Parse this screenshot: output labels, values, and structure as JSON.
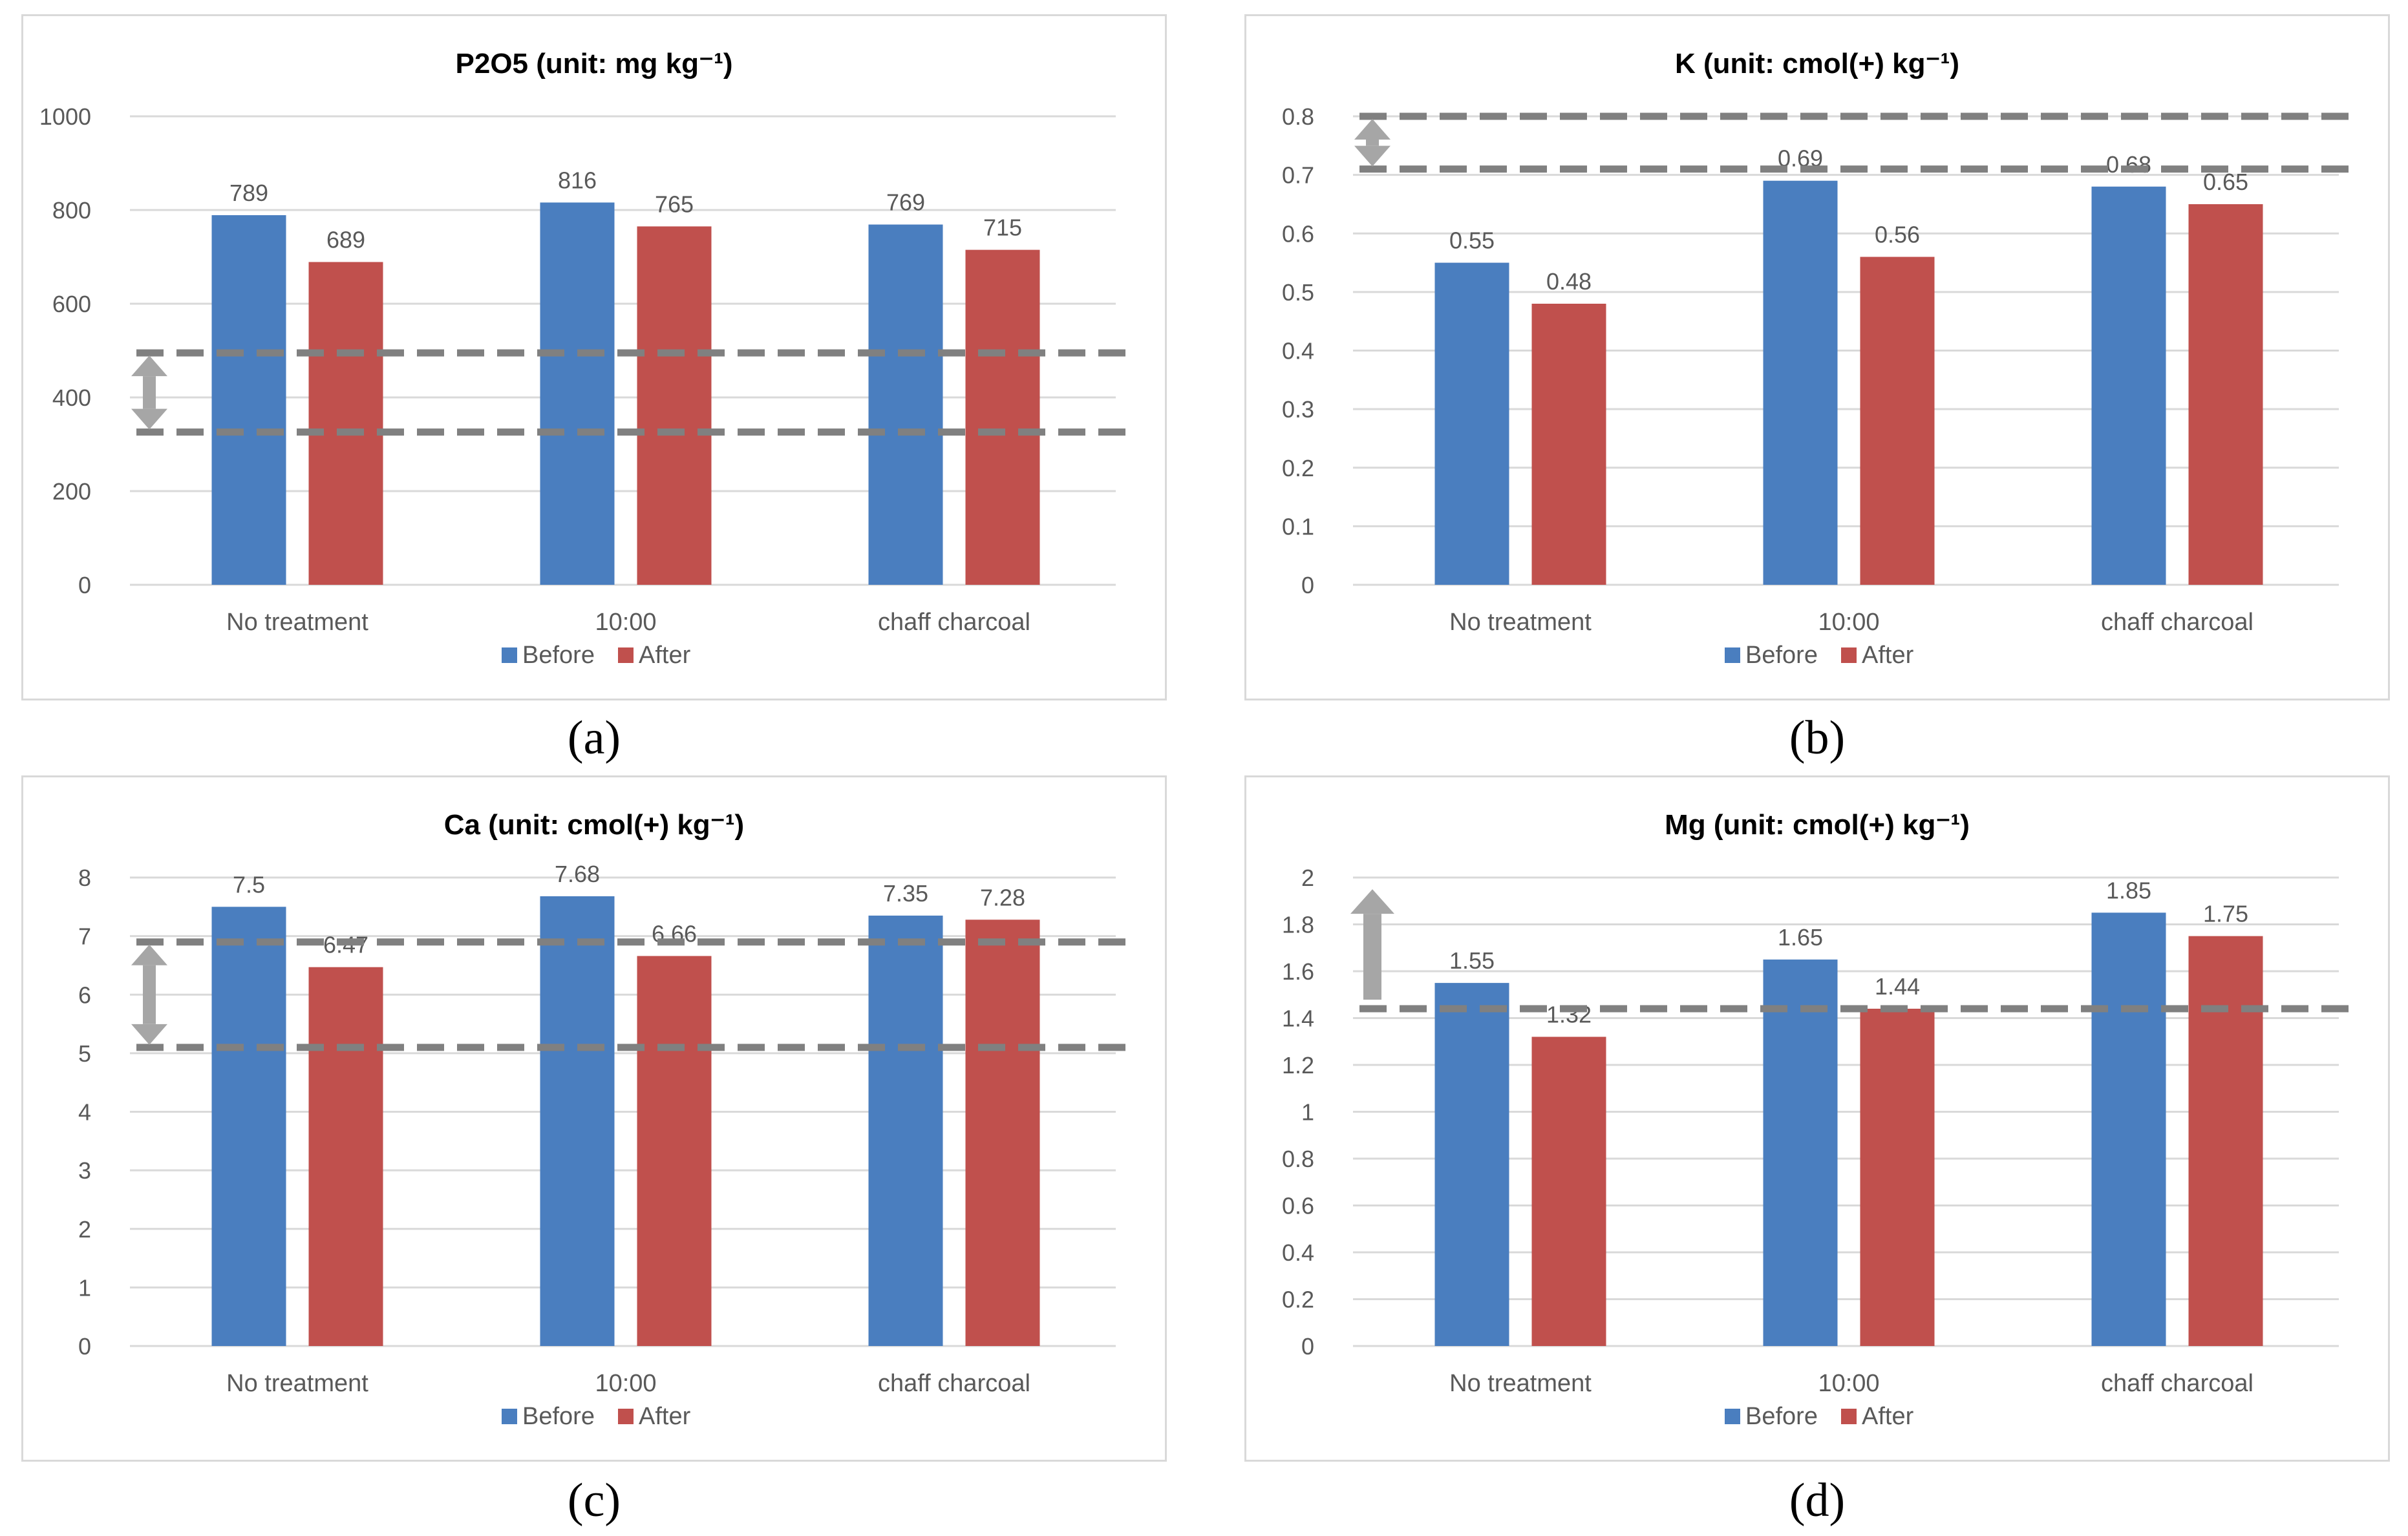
{
  "colors": {
    "before": "#4a7ebf",
    "after": "#c0504d",
    "grid": "#d9d9d9",
    "dash": "#808080",
    "arrow": "#a6a6a6",
    "text": "#595959"
  },
  "legend": {
    "before": "Before",
    "after": "After"
  },
  "captions": [
    "(a)",
    "(b)",
    "(c)",
    "(d)"
  ],
  "chart_data": [
    {
      "type": "bar",
      "title": "P2O5 (unit: mg kg⁻¹)",
      "categories": [
        "No treatment",
        "10:00",
        "chaff charcoal"
      ],
      "series": [
        {
          "name": "Before",
          "values": [
            789,
            816,
            769
          ]
        },
        {
          "name": "After",
          "values": [
            689,
            765,
            715
          ]
        }
      ],
      "data_labels": [
        [
          "789",
          "816",
          "769"
        ],
        [
          "689",
          "765",
          "715"
        ]
      ],
      "ylim": [
        0,
        1000
      ],
      "yticks": [
        0,
        200,
        400,
        600,
        800,
        1000
      ],
      "ytick_labels": [
        "0",
        "200",
        "400",
        "600",
        "800",
        "1000"
      ],
      "reference_lines": [
        495,
        326
      ],
      "reference_arrow": {
        "from": 326,
        "to": 495,
        "style": "double"
      },
      "grid": true,
      "legend_position": "bottom"
    },
    {
      "type": "bar",
      "title": "K (unit: cmol(+) kg⁻¹)",
      "categories": [
        "No treatment",
        "10:00",
        "chaff charcoal"
      ],
      "series": [
        {
          "name": "Before",
          "values": [
            0.55,
            0.69,
            0.68
          ]
        },
        {
          "name": "After",
          "values": [
            0.48,
            0.56,
            0.65
          ]
        }
      ],
      "data_labels": [
        [
          "0.55",
          "0.69",
          "0.68"
        ],
        [
          "0.48",
          "0.56",
          "0.65"
        ]
      ],
      "ylim": [
        0,
        0.8
      ],
      "yticks": [
        0,
        0.1,
        0.2,
        0.3,
        0.4,
        0.5,
        0.6,
        0.7,
        0.8
      ],
      "ytick_labels": [
        "0",
        "0.1",
        "0.2",
        "0.3",
        "0.4",
        "0.5",
        "0.6",
        "0.7",
        "0.8"
      ],
      "reference_lines": [
        0.8,
        0.71
      ],
      "reference_arrow": {
        "from": 0.71,
        "to": 0.8,
        "style": "double"
      },
      "grid": true,
      "legend_position": "bottom"
    },
    {
      "type": "bar",
      "title": "Ca (unit: cmol(+) kg⁻¹)",
      "categories": [
        "No treatment",
        "10:00",
        "chaff charcoal"
      ],
      "series": [
        {
          "name": "Before",
          "values": [
            7.5,
            7.68,
            7.35
          ]
        },
        {
          "name": "After",
          "values": [
            6.47,
            6.66,
            7.28
          ]
        }
      ],
      "data_labels": [
        [
          "7.5",
          "7.68",
          "7.35"
        ],
        [
          "6.47",
          "6.66",
          "7.28"
        ]
      ],
      "ylim": [
        0,
        8
      ],
      "yticks": [
        0,
        1,
        2,
        3,
        4,
        5,
        6,
        7,
        8
      ],
      "ytick_labels": [
        "0",
        "1",
        "2",
        "3",
        "4",
        "5",
        "6",
        "7",
        "8"
      ],
      "reference_lines": [
        6.9,
        5.1
      ],
      "reference_arrow": {
        "from": 5.1,
        "to": 6.9,
        "style": "double"
      },
      "grid": true,
      "legend_position": "bottom"
    },
    {
      "type": "bar",
      "title": "Mg (unit: cmol(+) kg⁻¹)",
      "categories": [
        "No treatment",
        "10:00",
        "chaff charcoal"
      ],
      "series": [
        {
          "name": "Before",
          "values": [
            1.55,
            1.65,
            1.85
          ]
        },
        {
          "name": "After",
          "values": [
            1.32,
            1.44,
            1.75
          ]
        }
      ],
      "data_labels": [
        [
          "1.55",
          "1.65",
          "1.85"
        ],
        [
          "1.32",
          "1.44",
          "1.75"
        ]
      ],
      "ylim": [
        0,
        2
      ],
      "yticks": [
        0,
        0.2,
        0.4,
        0.6,
        0.8,
        1,
        1.2,
        1.4,
        1.6,
        1.8,
        2
      ],
      "ytick_labels": [
        "0",
        "0.2",
        "0.4",
        "0.6",
        "0.8",
        "1",
        "1.2",
        "1.4",
        "1.6",
        "1.8",
        "2"
      ],
      "reference_lines": [
        1.44
      ],
      "reference_arrow": {
        "from": 1.44,
        "to": 1.95,
        "style": "up"
      },
      "grid": true,
      "legend_position": "bottom"
    }
  ]
}
